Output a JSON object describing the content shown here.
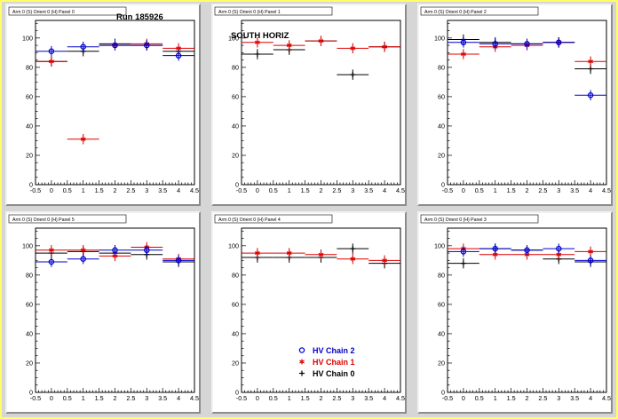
{
  "chart_data": [
    {
      "type": "scatter",
      "title": "Arm 0 (S) Orient 0 (H) Panel 0",
      "annotation": "Run 185926",
      "xlim": [
        -0.5,
        4.5
      ],
      "ylim": [
        0,
        112
      ],
      "xticks": [
        "-0.5",
        "0",
        "0.5",
        "1",
        "1.5",
        "2",
        "2.5",
        "3",
        "3.5",
        "4",
        "4.5"
      ],
      "yticks": [
        "0",
        "20",
        "40",
        "60",
        "80",
        "100"
      ],
      "series": [
        {
          "name": "HV Chain 0",
          "color": "#000000",
          "marker": "plus",
          "x": [
            0,
            1,
            2,
            3,
            4
          ],
          "y": [
            84,
            91,
            96,
            95,
            91
          ]
        },
        {
          "name": "HV Chain 1",
          "color": "#dd0000",
          "marker": "star",
          "x": [
            0,
            1,
            2,
            3,
            4
          ],
          "y": [
            84,
            31,
            95,
            96,
            93
          ]
        },
        {
          "name": "HV Chain 2",
          "color": "#0000cc",
          "marker": "circle",
          "x": [
            0,
            1,
            2,
            3,
            4
          ],
          "y": [
            91,
            94,
            95,
            95,
            88
          ]
        }
      ]
    },
    {
      "type": "scatter",
      "title": "Arm 0 (S) Orient 0 (H) Panel 1",
      "annotation": "SOUTH HORIZ",
      "xlim": [
        -0.5,
        4.5
      ],
      "ylim": [
        0,
        112
      ],
      "xticks": [
        "-0.5",
        "0",
        "0.5",
        "1",
        "1.5",
        "2",
        "2.5",
        "3",
        "3.5",
        "4",
        "4.5"
      ],
      "yticks": [
        "0",
        "20",
        "40",
        "60",
        "80",
        "100"
      ],
      "series": [
        {
          "name": "HV Chain 0",
          "color": "#000000",
          "marker": "plus",
          "x": [
            0,
            1,
            2,
            3,
            4
          ],
          "y": [
            89,
            92,
            98,
            75,
            94
          ]
        },
        {
          "name": "HV Chain 1",
          "color": "#dd0000",
          "marker": "star",
          "x": [
            0,
            1,
            2,
            3,
            4
          ],
          "y": [
            97,
            95,
            98,
            93,
            94
          ]
        }
      ]
    },
    {
      "type": "scatter",
      "title": "Arm 0 (S) Orient 0 (H) Panel 2",
      "annotation": "",
      "xlim": [
        -0.5,
        4.5
      ],
      "ylim": [
        0,
        112
      ],
      "xticks": [
        "-0.5",
        "0",
        "0.5",
        "1",
        "1.5",
        "2",
        "2.5",
        "3",
        "3.5",
        "4",
        "4.5"
      ],
      "yticks": [
        "0",
        "20",
        "40",
        "60",
        "80",
        "100"
      ],
      "series": [
        {
          "name": "HV Chain 0",
          "color": "#000000",
          "marker": "plus",
          "x": [
            0,
            1,
            2,
            3,
            4
          ],
          "y": [
            99,
            97,
            96,
            97,
            79
          ]
        },
        {
          "name": "HV Chain 1",
          "color": "#dd0000",
          "marker": "star",
          "x": [
            0,
            1,
            2,
            3,
            4
          ],
          "y": [
            89,
            94,
            95,
            97,
            84
          ]
        },
        {
          "name": "HV Chain 2",
          "color": "#0000cc",
          "marker": "circle",
          "x": [
            0,
            1,
            2,
            3,
            4
          ],
          "y": [
            97,
            96,
            96,
            97,
            61
          ]
        }
      ]
    },
    {
      "type": "scatter",
      "title": "Arm 0 (S) Orient 0 (H) Panel 5",
      "annotation": "",
      "xlim": [
        -0.5,
        4.5
      ],
      "ylim": [
        0,
        112
      ],
      "xticks": [
        "-0.5",
        "0",
        "0.5",
        "1",
        "1.5",
        "2",
        "2.5",
        "3",
        "3.5",
        "4",
        "4.5"
      ],
      "yticks": [
        "0",
        "20",
        "40",
        "60",
        "80",
        "100"
      ],
      "series": [
        {
          "name": "HV Chain 0",
          "color": "#000000",
          "marker": "plus",
          "x": [
            0,
            1,
            2,
            3,
            4
          ],
          "y": [
            95,
            96,
            95,
            94,
            89
          ]
        },
        {
          "name": "HV Chain 1",
          "color": "#dd0000",
          "marker": "star",
          "x": [
            0,
            1,
            2,
            3,
            4
          ],
          "y": [
            97,
            97,
            93,
            99,
            91
          ]
        },
        {
          "name": "HV Chain 2",
          "color": "#0000cc",
          "marker": "circle",
          "x": [
            0,
            1,
            2,
            3,
            4
          ],
          "y": [
            89,
            91,
            97,
            97,
            90
          ]
        }
      ]
    },
    {
      "type": "scatter",
      "title": "Arm 0 (S) Orient 0 (H) Panel 4",
      "annotation": "",
      "xlim": [
        -0.5,
        4.5
      ],
      "ylim": [
        0,
        112
      ],
      "xticks": [
        "-0.5",
        "0",
        "0.5",
        "1",
        "1.5",
        "2",
        "2.5",
        "3",
        "3.5",
        "4",
        "4.5"
      ],
      "yticks": [
        "0",
        "20",
        "40",
        "60",
        "80",
        "100"
      ],
      "series": [
        {
          "name": "HV Chain 0",
          "color": "#000000",
          "marker": "plus",
          "x": [
            0,
            1,
            2,
            3,
            4
          ],
          "y": [
            92,
            92,
            92,
            98,
            88
          ]
        },
        {
          "name": "HV Chain 1",
          "color": "#dd0000",
          "marker": "star",
          "x": [
            0,
            1,
            2,
            3,
            4
          ],
          "y": [
            95,
            95,
            94,
            91,
            90
          ]
        }
      ],
      "legend": {
        "placement": "bottom-right",
        "entries": [
          {
            "label": "HV Chain 2",
            "color": "#0000cc",
            "marker": "circle"
          },
          {
            "label": "HV Chain 1",
            "color": "#dd0000",
            "marker": "star"
          },
          {
            "label": "HV Chain 0",
            "color": "#000000",
            "marker": "plus"
          }
        ]
      }
    },
    {
      "type": "scatter",
      "title": "Arm 0 (S) Orient 0 (H) Panel 3",
      "annotation": "",
      "xlim": [
        -0.5,
        4.5
      ],
      "ylim": [
        0,
        112
      ],
      "xticks": [
        "-0.5",
        "0",
        "0.5",
        "1",
        "1.5",
        "2",
        "2.5",
        "3",
        "3.5",
        "4",
        "4.5"
      ],
      "yticks": [
        "0",
        "20",
        "40",
        "60",
        "80",
        "100"
      ],
      "series": [
        {
          "name": "HV Chain 0",
          "color": "#000000",
          "marker": "plus",
          "x": [
            0,
            1,
            2,
            3,
            4
          ],
          "y": [
            88,
            98,
            97,
            91,
            89
          ]
        },
        {
          "name": "HV Chain 1",
          "color": "#dd0000",
          "marker": "star",
          "x": [
            0,
            1,
            2,
            3,
            4
          ],
          "y": [
            98,
            94,
            94,
            94,
            96
          ]
        },
        {
          "name": "HV Chain 2",
          "color": "#0000cc",
          "marker": "circle",
          "x": [
            0,
            1,
            2,
            3,
            4
          ],
          "y": [
            96,
            98,
            97,
            98,
            90
          ]
        }
      ]
    }
  ]
}
